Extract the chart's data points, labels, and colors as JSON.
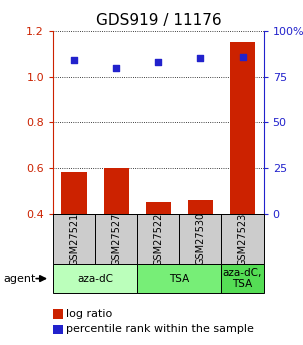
{
  "title": "GDS919 / 11176",
  "samples": [
    "GSM27521",
    "GSM27527",
    "GSM27522",
    "GSM27530",
    "GSM27523"
  ],
  "log_ratio": [
    0.583,
    0.6,
    0.453,
    0.462,
    1.15
  ],
  "percentile_rank": [
    84,
    80,
    83,
    85,
    86
  ],
  "ylim_left": [
    0.4,
    1.2
  ],
  "ylim_right": [
    0,
    100
  ],
  "yticks_left": [
    0.4,
    0.6,
    0.8,
    1.0,
    1.2
  ],
  "yticks_right": [
    0,
    25,
    50,
    75,
    100
  ],
  "ytick_labels_right": [
    "0",
    "25",
    "50",
    "75",
    "100%"
  ],
  "bar_color": "#cc2200",
  "dot_color": "#2222cc",
  "groups": [
    {
      "label": "aza-dC",
      "indices": [
        0,
        1
      ],
      "color": "#bbffbb"
    },
    {
      "label": "TSA",
      "indices": [
        2,
        3
      ],
      "color": "#77ee77"
    },
    {
      "label": "aza-dC,\nTSA",
      "indices": [
        4
      ],
      "color": "#55dd55"
    }
  ],
  "bar_bottom": 0.4,
  "sample_box_color": "#cccccc",
  "title_fontsize": 11,
  "tick_fontsize": 8,
  "legend_bar_label": "log ratio",
  "legend_dot_label": "percentile rank within the sample"
}
